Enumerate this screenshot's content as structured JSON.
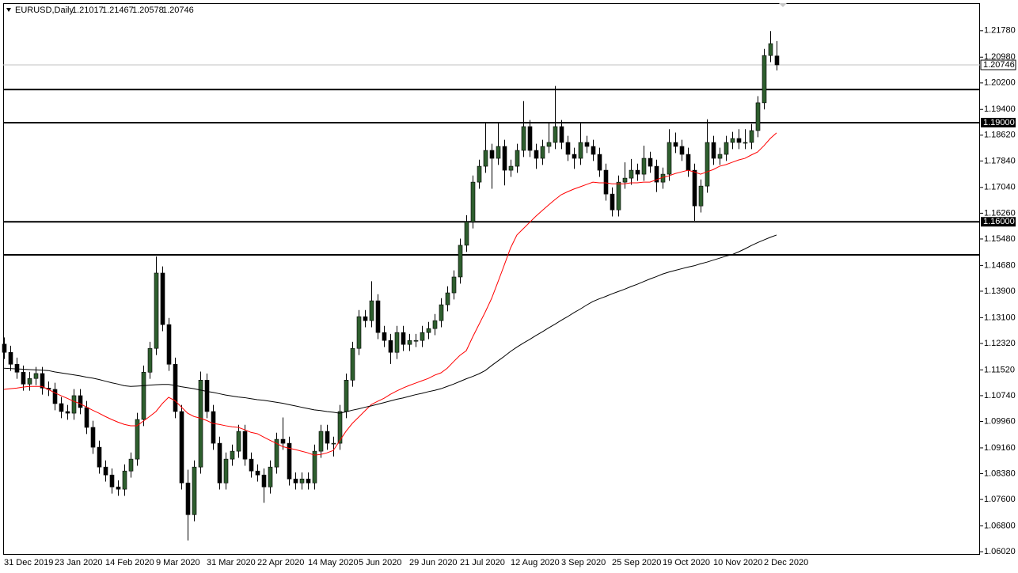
{
  "chart_data": {
    "type": "candlestick",
    "symbol": "EURUSD,Daily",
    "ohlc": [
      1.21017,
      1.21467,
      1.20578,
      1.20746
    ],
    "categories": [
      "31 Dec 2019",
      null,
      null,
      null,
      null,
      null,
      null,
      null,
      "23 Jan 2020",
      null,
      null,
      null,
      null,
      null,
      null,
      null,
      "14 Feb 2020",
      null,
      null,
      null,
      null,
      null,
      null,
      null,
      "9 Mar 2020",
      null,
      null,
      null,
      null,
      null,
      null,
      null,
      "31 Mar 2020",
      null,
      null,
      null,
      null,
      null,
      null,
      null,
      "22 Apr 2020",
      null,
      null,
      null,
      null,
      null,
      null,
      null,
      "14 May 2020",
      null,
      null,
      null,
      null,
      null,
      null,
      null,
      "5 Jun 2020",
      null,
      null,
      null,
      null,
      null,
      null,
      null,
      "29 Jun 2020",
      null,
      null,
      null,
      null,
      null,
      null,
      null,
      "21 Jul 2020",
      null,
      null,
      null,
      null,
      null,
      null,
      null,
      "12 Aug 2020",
      null,
      null,
      null,
      null,
      null,
      null,
      null,
      "3 Sep 2020",
      null,
      null,
      null,
      null,
      null,
      null,
      null,
      "25 Sep 2020",
      null,
      null,
      null,
      null,
      null,
      null,
      null,
      "19 Oct 2020",
      null,
      null,
      null,
      null,
      null,
      null,
      null,
      "10 Nov 2020",
      null,
      null,
      null,
      null,
      null,
      null,
      null,
      "2 Dec 2020",
      null,
      null
    ],
    "open": [
      1.123,
      1.1205,
      1.1169,
      1.1145,
      1.1109,
      1.1126,
      1.1141,
      1.1097,
      1.1093,
      1.105,
      1.1026,
      1.1021,
      1.1074,
      1.1038,
      1.0978,
      1.0918,
      1.0858,
      1.0834,
      1.0798,
      1.0791,
      1.0846,
      1.0882,
      1.1002,
      1.1145,
      1.1217,
      1.1445,
      1.1289,
      1.1169,
      1.1026,
      1.081,
      1.0714,
      1.0858,
      1.1121,
      1.1026,
      1.093,
      1.081,
      1.0882,
      1.0906,
      1.0966,
      1.0882,
      1.0846,
      1.0834,
      1.0798,
      1.0858,
      1.0942,
      1.093,
      1.0822,
      1.081,
      1.0822,
      1.081,
      1.0906,
      1.0966,
      1.093,
      1.093,
      1.1026,
      1.1121,
      1.1217,
      1.1313,
      1.1301,
      1.1361,
      1.1265,
      1.1241,
      1.1205,
      1.1265,
      1.1229,
      1.1241,
      1.1241,
      1.1265,
      1.1277,
      1.1301,
      1.1349,
      1.1385,
      1.1433,
      1.1529,
      1.16,
      1.172,
      1.1768,
      1.1816,
      1.1792,
      1.1828,
      1.1756,
      1.1768,
      1.1816,
      1.1888,
      1.1816,
      1.1792,
      1.1828,
      1.184,
      1.1888,
      1.184,
      1.1804,
      1.1792,
      1.184,
      1.1828,
      1.1804,
      1.1756,
      1.1684,
      1.1636,
      1.172,
      1.1732,
      1.1756,
      1.1744,
      1.1792,
      1.1768,
      1.172,
      1.1744,
      1.184,
      1.1828,
      1.1804,
      1.1756,
      1.1648,
      1.1708,
      1.184,
      1.1792,
      1.1804,
      1.184,
      1.1852,
      1.184,
      1.184,
      1.1876,
      1.196,
      1.2103,
      1.21017
    ],
    "high": [
      1.125,
      1.1225,
      1.1189,
      1.1165,
      1.1146,
      1.1161,
      1.1161,
      1.1117,
      1.1113,
      1.107,
      1.1046,
      1.1094,
      1.1094,
      1.1058,
      1.0998,
      1.0938,
      1.0878,
      1.0854,
      1.0818,
      1.0866,
      1.0902,
      1.1022,
      1.1165,
      1.1237,
      1.1495,
      1.1465,
      1.1309,
      1.1189,
      1.1046,
      1.085,
      1.0878,
      1.1147,
      1.1141,
      1.1046,
      1.095,
      1.0902,
      1.0926,
      1.0986,
      1.0986,
      1.0902,
      1.0866,
      1.0854,
      1.0878,
      1.0962,
      1.1008,
      1.095,
      1.0842,
      1.0842,
      1.0842,
      1.0926,
      1.0986,
      1.0986,
      1.095,
      1.1046,
      1.1141,
      1.1237,
      1.1333,
      1.1333,
      1.142,
      1.1381,
      1.1285,
      1.1261,
      1.1285,
      1.1285,
      1.1261,
      1.1261,
      1.1285,
      1.1297,
      1.1321,
      1.1369,
      1.1405,
      1.1453,
      1.1549,
      1.162,
      1.174,
      1.1788,
      1.19,
      1.1836,
      1.19,
      1.1848,
      1.1788,
      1.1836,
      1.1965,
      1.1908,
      1.1836,
      1.1848,
      1.19,
      1.2011,
      1.1908,
      1.186,
      1.1824,
      1.19,
      1.186,
      1.1848,
      1.1824,
      1.1776,
      1.1704,
      1.174,
      1.178,
      1.179,
      1.1776,
      1.183,
      1.1812,
      1.1788,
      1.1764,
      1.188,
      1.187,
      1.1848,
      1.1824,
      1.1776,
      1.1728,
      1.191,
      1.186,
      1.1824,
      1.186,
      1.1872,
      1.188,
      1.188,
      1.1896,
      1.198,
      1.2123,
      1.2177,
      1.21467
    ],
    "low": [
      1.1185,
      1.1149,
      1.1125,
      1.1089,
      1.1089,
      1.1106,
      1.1077,
      1.1073,
      1.103,
      1.1006,
      1.1001,
      1.1001,
      1.1018,
      1.0958,
      1.0898,
      1.0838,
      1.0814,
      1.0778,
      1.0771,
      1.0771,
      1.0826,
      1.0862,
      1.0982,
      1.1125,
      1.1197,
      1.1269,
      1.1149,
      1.1006,
      1.079,
      1.0636,
      1.0694,
      1.0838,
      1.1006,
      1.091,
      1.079,
      1.079,
      1.0862,
      1.0886,
      1.0862,
      1.0826,
      1.0814,
      1.075,
      1.0778,
      1.0838,
      1.091,
      1.0802,
      1.079,
      1.079,
      1.079,
      1.079,
      1.0886,
      1.091,
      1.089,
      1.091,
      1.1006,
      1.1101,
      1.1197,
      1.1281,
      1.1281,
      1.1245,
      1.1221,
      1.117,
      1.1185,
      1.1209,
      1.1209,
      1.1221,
      1.1221,
      1.1245,
      1.1257,
      1.1281,
      1.1329,
      1.1365,
      1.1413,
      1.1509,
      1.158,
      1.17,
      1.1748,
      1.17,
      1.1772,
      1.171,
      1.1736,
      1.1748,
      1.1796,
      1.1796,
      1.176,
      1.1772,
      1.1808,
      1.182,
      1.182,
      1.1784,
      1.176,
      1.1772,
      1.1808,
      1.1784,
      1.1736,
      1.1664,
      1.1616,
      1.1616,
      1.17,
      1.1712,
      1.1724,
      1.1724,
      1.1748,
      1.169,
      1.17,
      1.1724,
      1.1808,
      1.1784,
      1.1736,
      1.1603,
      1.1628,
      1.1688,
      1.1772,
      1.1772,
      1.1784,
      1.182,
      1.182,
      1.182,
      1.182,
      1.1856,
      1.194,
      1.2083,
      1.20578
    ],
    "close": [
      1.1205,
      1.1169,
      1.1145,
      1.1109,
      1.1126,
      1.1141,
      1.1097,
      1.1093,
      1.105,
      1.1026,
      1.1021,
      1.1074,
      1.1038,
      1.0978,
      1.0918,
      1.0858,
      1.0834,
      1.0798,
      1.0791,
      1.0846,
      1.0882,
      1.1002,
      1.1145,
      1.1217,
      1.1445,
      1.1289,
      1.1169,
      1.1026,
      1.081,
      1.0714,
      1.0858,
      1.1121,
      1.1026,
      1.093,
      1.081,
      1.0882,
      1.0906,
      1.0966,
      1.0882,
      1.0846,
      1.0834,
      1.0798,
      1.0858,
      1.0942,
      1.093,
      1.0822,
      1.081,
      1.0822,
      1.081,
      1.0906,
      1.0966,
      1.093,
      1.093,
      1.1026,
      1.1121,
      1.1217,
      1.1313,
      1.1301,
      1.1361,
      1.1265,
      1.1241,
      1.1205,
      1.1265,
      1.1229,
      1.1241,
      1.1241,
      1.1265,
      1.1277,
      1.1301,
      1.1349,
      1.1385,
      1.1433,
      1.1529,
      1.16,
      1.172,
      1.1768,
      1.1816,
      1.1792,
      1.1828,
      1.1756,
      1.1768,
      1.1816,
      1.1888,
      1.1816,
      1.1792,
      1.1828,
      1.184,
      1.1888,
      1.184,
      1.1804,
      1.1792,
      1.184,
      1.1828,
      1.1804,
      1.1756,
      1.1684,
      1.1636,
      1.172,
      1.1732,
      1.1756,
      1.1744,
      1.1792,
      1.1768,
      1.172,
      1.1744,
      1.184,
      1.1828,
      1.1804,
      1.1756,
      1.1648,
      1.1708,
      1.184,
      1.1792,
      1.1804,
      1.184,
      1.1852,
      1.184,
      1.184,
      1.1876,
      1.196,
      1.2103,
      1.2139,
      1.20746
    ],
    "bull_color": "#2e5e2e",
    "bear_color": "#000000",
    "series": [
      {
        "color": "#ff0000",
        "values": [
          1.1093,
          1.1095,
          1.1097,
          1.11,
          1.1102,
          1.1102,
          1.1102,
          1.1093,
          1.1083,
          1.1074,
          1.1066,
          1.1057,
          1.105,
          1.104,
          1.103,
          1.1021,
          1.1011,
          1.1002,
          1.0994,
          1.0987,
          1.0983,
          1.0983,
          1.0997,
          1.1011,
          1.1026,
          1.105,
          1.1069,
          1.1059,
          1.104,
          1.1021,
          1.1011,
          1.1006,
          1.0999,
          1.099,
          1.0987,
          1.0983,
          1.098,
          1.0978,
          1.0971,
          1.0963,
          1.0959,
          1.0949,
          1.0939,
          1.093,
          1.092,
          1.0915,
          1.0911,
          1.0906,
          1.0901,
          1.0894,
          1.0896,
          1.0901,
          1.0908,
          1.0937,
          1.0966,
          1.099,
          1.1009,
          1.1028,
          1.1047,
          1.1057,
          1.1066,
          1.1078,
          1.1088,
          1.1097,
          1.1105,
          1.1112,
          1.1119,
          1.1126,
          1.1136,
          1.1143,
          1.1157,
          1.1177,
          1.1196,
          1.121,
          1.1251,
          1.1289,
          1.1327,
          1.1368,
          1.1418,
          1.1469,
          1.1521,
          1.156,
          1.1579,
          1.1598,
          1.1617,
          1.1634,
          1.1651,
          1.1667,
          1.1682,
          1.1691,
          1.1699,
          1.1706,
          1.1713,
          1.172,
          1.1718,
          1.1718,
          1.1715,
          1.1715,
          1.1715,
          1.1718,
          1.1718,
          1.172,
          1.172,
          1.1727,
          1.1734,
          1.1739,
          1.1746,
          1.1751,
          1.1756,
          1.1751,
          1.1744,
          1.1751,
          1.1758,
          1.1768,
          1.1773,
          1.178,
          1.1787,
          1.1792,
          1.1802,
          1.1811,
          1.183,
          1.1852,
          1.1869
        ]
      },
      {
        "color": "#000000",
        "values": [
          1.1157,
          1.1156,
          1.1155,
          1.1154,
          1.1153,
          1.1152,
          1.1151,
          1.115,
          1.1146,
          1.1143,
          1.114,
          1.1137,
          1.1134,
          1.113,
          1.1127,
          1.1123,
          1.1118,
          1.1113,
          1.1109,
          1.1104,
          1.1102,
          1.1103,
          1.1104,
          1.1106,
          1.1107,
          1.1108,
          1.1108,
          1.1105,
          1.1101,
          1.1098,
          1.1095,
          1.1091,
          1.1087,
          1.1084,
          1.108,
          1.1076,
          1.1073,
          1.107,
          1.1068,
          1.1065,
          1.1062,
          1.106,
          1.1057,
          1.1054,
          1.1051,
          1.1047,
          1.1043,
          1.1039,
          1.1035,
          1.1031,
          1.1029,
          1.1026,
          1.1024,
          1.1021,
          1.1025,
          1.103,
          1.1034,
          1.1039,
          1.1043,
          1.1048,
          1.1053,
          1.1058,
          1.1063,
          1.1067,
          1.1072,
          1.1077,
          1.1081,
          1.1086,
          1.109,
          1.1095,
          1.1102,
          1.1109,
          1.1117,
          1.1125,
          1.1132,
          1.114,
          1.115,
          1.1165,
          1.1179,
          1.1193,
          1.1208,
          1.1221,
          1.1233,
          1.1244,
          1.1256,
          1.1267,
          1.1279,
          1.129,
          1.1302,
          1.1313,
          1.1325,
          1.1336,
          1.1348,
          1.1359,
          1.1367,
          1.1374,
          1.1382,
          1.1389,
          1.1396,
          1.1404,
          1.1411,
          1.1419,
          1.1427,
          1.1434,
          1.1442,
          1.1448,
          1.1453,
          1.1458,
          1.1463,
          1.1467,
          1.1473,
          1.1478,
          1.1484,
          1.149,
          1.1496,
          1.1501,
          1.1509,
          1.1518,
          1.1528,
          1.1537,
          1.1545,
          1.1553,
          1.156
        ]
      }
    ],
    "levels": [
      1.2,
      {
        "value": 1.19,
        "label": "1.19000"
      },
      {
        "value": 1.16,
        "label": "1.16000"
      },
      1.15
    ],
    "bid": 1.20746,
    "ylim": [
      1.0595,
      1.2259
    ],
    "yticks": [
      {
        "value": 1.0602,
        "label": "1.06020"
      },
      {
        "value": 1.068,
        "label": "1.06800"
      },
      {
        "value": 1.076,
        "label": "1.07600"
      },
      {
        "value": 1.0838,
        "label": "1.08380"
      },
      {
        "value": 1.0916,
        "label": "1.09160"
      },
      {
        "value": 1.0996,
        "label": "1.09960"
      },
      {
        "value": 1.1074,
        "label": "1.10740"
      },
      {
        "value": 1.1152,
        "label": "1.11520"
      },
      {
        "value": 1.1232,
        "label": "1.12320"
      },
      {
        "value": 1.131,
        "label": "1.13100"
      },
      {
        "value": 1.139,
        "label": "1.13900"
      },
      {
        "value": 1.1468,
        "label": "1.14680"
      },
      {
        "value": 1.1548,
        "label": "1.15480"
      },
      {
        "value": 1.1626,
        "label": "1.16260"
      },
      {
        "value": 1.1704,
        "label": "1.17040"
      },
      {
        "value": 1.1784,
        "label": "1.17840"
      },
      {
        "value": 1.1862,
        "label": "1.18620"
      },
      {
        "value": 1.194,
        "label": "1.19400"
      },
      {
        "value": 1.202,
        "label": "1.20200"
      },
      {
        "value": 1.2098,
        "label": "1.20980"
      },
      {
        "value": 1.2178,
        "label": "1.21780"
      }
    ],
    "grid": false
  }
}
